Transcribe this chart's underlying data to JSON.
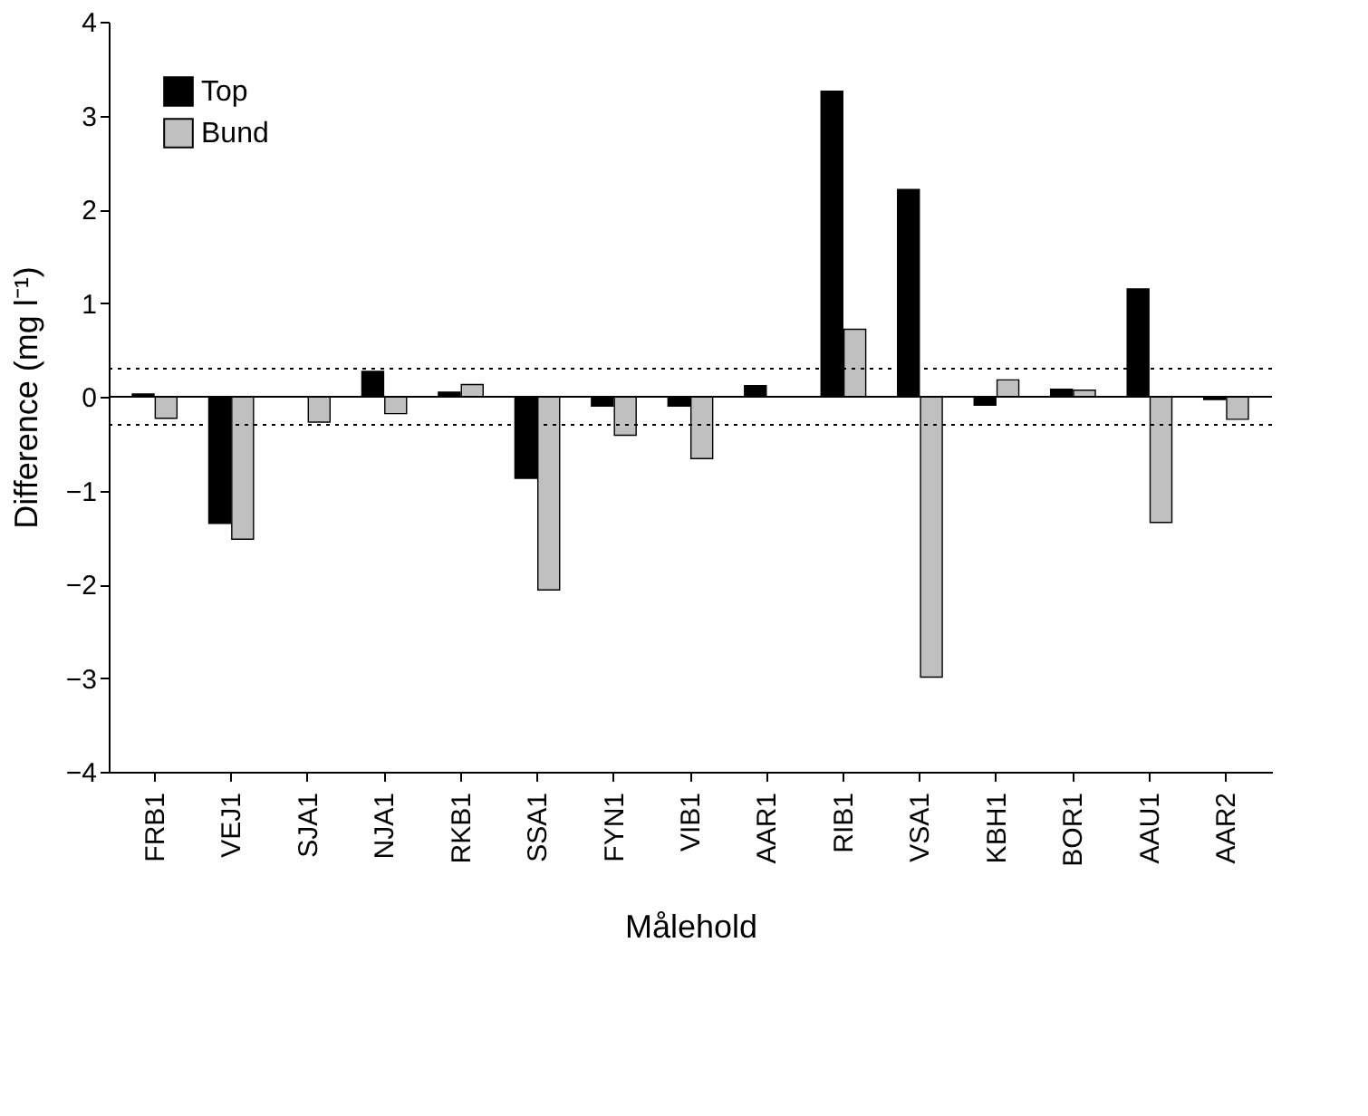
{
  "chart_data": {
    "type": "bar",
    "xlabel": "Målehold",
    "ylabel": "Difference (mg l⁻¹)",
    "categories": [
      "FRB1",
      "VEJ1",
      "SJA1",
      "NJA1",
      "RKB1",
      "SSA1",
      "FYN1",
      "VIB1",
      "AAR1",
      "RIB1",
      "VSA1",
      "KBH1",
      "BOR1",
      "AAU1",
      "AAR2"
    ],
    "series": [
      {
        "name": "Top",
        "color": "#000000",
        "values": [
          0.03,
          -1.35,
          null,
          0.27,
          0.05,
          -0.87,
          -0.1,
          -0.1,
          0.12,
          3.26,
          2.21,
          -0.09,
          0.08,
          1.15,
          -0.03
        ]
      },
      {
        "name": "Bund",
        "color": "#c0c0c0",
        "values": [
          -0.23,
          -1.52,
          -0.27,
          -0.18,
          0.13,
          -2.06,
          -0.41,
          -0.66,
          null,
          0.72,
          -2.99,
          0.18,
          0.07,
          -1.34,
          -0.24
        ]
      }
    ],
    "ylim": [
      -4,
      4
    ],
    "yticks": [
      -4,
      -3,
      -2,
      -1,
      0,
      1,
      2,
      3,
      4
    ],
    "ref_lines": [
      {
        "axis": "y",
        "value": 0,
        "line_style": "solid",
        "color": "#000000"
      },
      {
        "axis": "y",
        "value": 0.3,
        "line_style": "dotted",
        "color": "#000000"
      },
      {
        "axis": "y",
        "value": -0.3,
        "line_style": "dotted",
        "color": "#000000"
      }
    ],
    "grid": false,
    "legend": "top left"
  }
}
